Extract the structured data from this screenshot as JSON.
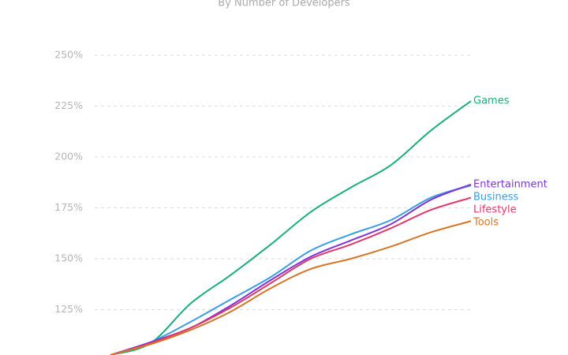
{
  "chart_data": {
    "type": "line",
    "subtitle": "By Number of Developers",
    "categories": [
      null,
      null,
      null,
      null,
      null,
      null,
      null,
      null,
      null,
      null
    ],
    "series": [
      {
        "name": "Games",
        "color": "#1aaf7a",
        "values": [
          102.7,
          108.5,
          128,
          142,
          157,
          173,
          185,
          196,
          213,
          227.5
        ]
      },
      {
        "name": "Business",
        "color": "#3a9ee0",
        "values": [
          102.7,
          109,
          119,
          130,
          141,
          154,
          162,
          169,
          180,
          186
        ]
      },
      {
        "name": "Entertainment",
        "color": "#7b35d8",
        "values": [
          102.7,
          109,
          116,
          127,
          139.5,
          151,
          159,
          167,
          179,
          186.5
        ]
      },
      {
        "name": "Lifestyle",
        "color": "#e0386b",
        "values": [
          102.7,
          108.5,
          116,
          126,
          138,
          150,
          157,
          165,
          174,
          180
        ]
      },
      {
        "name": "Tools",
        "color": "#d4762a",
        "values": [
          102.7,
          108,
          115,
          124,
          135.5,
          145,
          150,
          156,
          163,
          168.5
        ]
      }
    ],
    "ylim": [
      100,
      250
    ],
    "yticks": [
      {
        "value": 125,
        "label": "125%"
      },
      {
        "value": 150,
        "label": "150%"
      },
      {
        "value": 175,
        "label": "175%"
      },
      {
        "value": 200,
        "label": "200%"
      },
      {
        "value": 225,
        "label": "225%"
      },
      {
        "value": 250,
        "label": "250%"
      }
    ],
    "grid": true
  }
}
